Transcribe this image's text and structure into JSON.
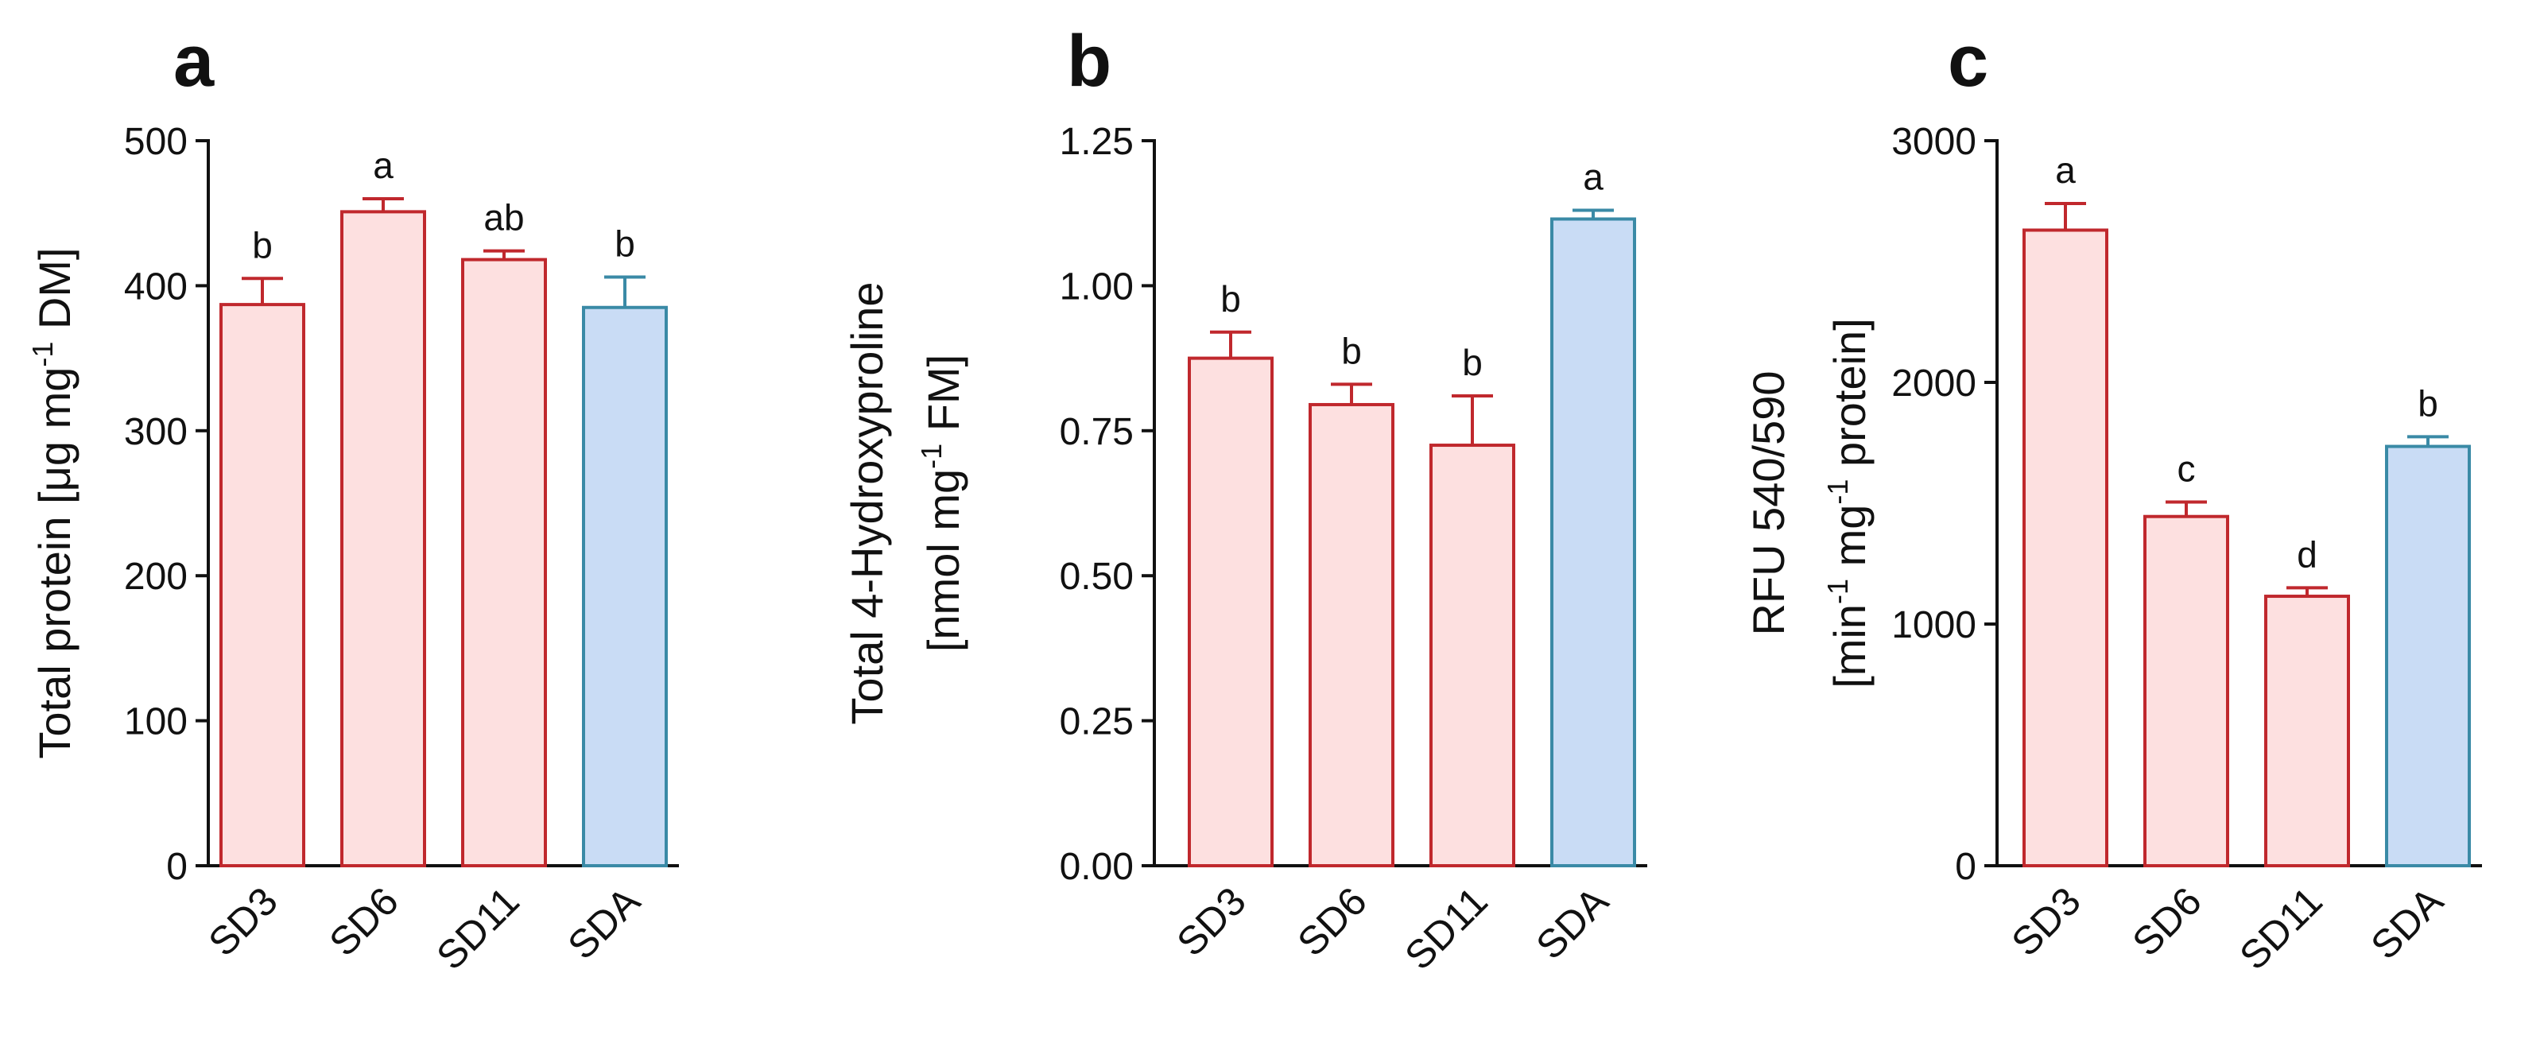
{
  "chart_data": [
    {
      "type": "bar",
      "panel": "a",
      "title": "",
      "xlabel": "",
      "ylabel": "Total protein [μg mg⁻¹ DM]",
      "ylabel_lines": [
        [
          {
            "t": "Total protein [μg mg"
          },
          {
            "t": "-1",
            "sup": true
          },
          {
            "t": " DM]"
          }
        ]
      ],
      "ylim": [
        0,
        500
      ],
      "yticks": [
        0,
        100,
        200,
        300,
        400,
        500
      ],
      "ytick_labels": [
        "0",
        "100",
        "200",
        "300",
        "400",
        "500"
      ],
      "categories": [
        "SD3",
        "SD6",
        "SD11",
        "SDA"
      ],
      "values": [
        387,
        451,
        418,
        385
      ],
      "errors": [
        18,
        9,
        6,
        21
      ],
      "significance": [
        "b",
        "a",
        "ab",
        "b"
      ],
      "bar_colors": [
        "red",
        "red",
        "red",
        "blue"
      ]
    },
    {
      "type": "bar",
      "panel": "b",
      "title": "",
      "xlabel": "",
      "ylabel": "Total 4-Hydroxyproline [nmol mg⁻¹ FM]",
      "ylabel_lines": [
        [
          {
            "t": "Total 4-Hydroxyproline"
          }
        ],
        [
          {
            "t": "[nmol mg"
          },
          {
            "t": "-1",
            "sup": true
          },
          {
            "t": " FM]"
          }
        ]
      ],
      "ylim": [
        0,
        1.25
      ],
      "yticks": [
        0,
        0.25,
        0.5,
        0.75,
        1.0,
        1.25
      ],
      "ytick_labels": [
        "0.00",
        "0.25",
        "0.50",
        "0.75",
        "1.00",
        "1.25"
      ],
      "categories": [
        "SD3",
        "SD6",
        "SD11",
        "SDA"
      ],
      "values": [
        0.875,
        0.795,
        0.725,
        1.115
      ],
      "errors": [
        0.045,
        0.035,
        0.085,
        0.015
      ],
      "significance": [
        "b",
        "b",
        "b",
        "a"
      ],
      "bar_colors": [
        "red",
        "red",
        "red",
        "blue"
      ]
    },
    {
      "type": "bar",
      "panel": "c",
      "title": "",
      "xlabel": "",
      "ylabel": "RFU 540/590 [min⁻¹ mg⁻¹ protein]",
      "ylabel_lines": [
        [
          {
            "t": "RFU 540/590"
          }
        ],
        [
          {
            "t": "[min"
          },
          {
            "t": "-1",
            "sup": true
          },
          {
            "t": " mg"
          },
          {
            "t": "-1",
            "sup": true
          },
          {
            "t": " protein]"
          }
        ]
      ],
      "ylim": [
        0,
        3000
      ],
      "yticks": [
        0,
        1000,
        2000,
        3000
      ],
      "ytick_labels": [
        "0",
        "1000",
        "2000",
        "3000"
      ],
      "categories": [
        "SD3",
        "SD6",
        "SD11",
        "SDA"
      ],
      "values": [
        2630,
        1445,
        1115,
        1735
      ],
      "errors": [
        110,
        60,
        35,
        40
      ],
      "significance": [
        "a",
        "c",
        "d",
        "b"
      ],
      "bar_colors": [
        "red",
        "red",
        "red",
        "blue"
      ]
    }
  ],
  "colors": {
    "red_fill": "#fde0e0",
    "red_stroke": "#c0282d",
    "blue_fill": "#c9dcf5",
    "blue_stroke": "#3a8aa6",
    "axis": "#111111"
  }
}
